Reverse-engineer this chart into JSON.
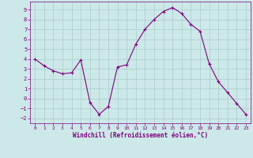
{
  "x": [
    0,
    1,
    2,
    3,
    4,
    5,
    6,
    7,
    8,
    9,
    10,
    11,
    12,
    13,
    14,
    15,
    16,
    17,
    18,
    19,
    20,
    21,
    22,
    23
  ],
  "y": [
    4,
    3.3,
    2.8,
    2.5,
    2.6,
    3.9,
    -0.4,
    -1.6,
    -0.8,
    3.2,
    3.4,
    5.5,
    7.0,
    8.0,
    8.8,
    9.2,
    8.6,
    7.5,
    6.8,
    3.5,
    1.7,
    0.6,
    -0.5,
    -1.6
  ],
  "line_color": "#800080",
  "marker": "+",
  "bg_color": "#cce8e8",
  "grid_color": "#aacccc",
  "xlabel": "Windchill (Refroidissement éolien,°C)",
  "xlabel_color": "#800080",
  "tick_color": "#800080",
  "ylim": [
    -2.5,
    9.8
  ],
  "xlim": [
    -0.5,
    23.5
  ],
  "yticks": [
    -2,
    -1,
    0,
    1,
    2,
    3,
    4,
    5,
    6,
    7,
    8,
    9
  ],
  "xticks": [
    0,
    1,
    2,
    3,
    4,
    5,
    6,
    7,
    8,
    9,
    10,
    11,
    12,
    13,
    14,
    15,
    16,
    17,
    18,
    19,
    20,
    21,
    22,
    23
  ],
  "spine_color": "#800080",
  "font_family": "monospace"
}
